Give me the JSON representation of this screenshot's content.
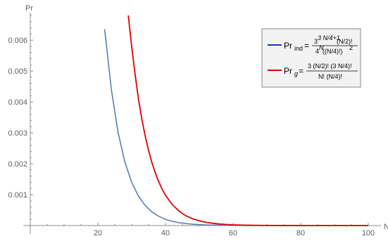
{
  "chart_data": {
    "type": "line",
    "ylabel": "Pr",
    "xlabel": "N",
    "xlim": [
      0,
      100
    ],
    "ylim": [
      0,
      0.0068
    ],
    "x_ticks": [
      20,
      40,
      60,
      80,
      100
    ],
    "y_ticks": [
      0.001,
      0.002,
      0.003,
      0.004,
      0.005,
      0.006
    ],
    "x_tick_labels": [
      "20",
      "40",
      "60",
      "80",
      "100"
    ],
    "y_tick_labels": [
      "0.001",
      "0.002",
      "0.003",
      "0.004",
      "0.005",
      "0.006"
    ],
    "grid": false,
    "legend_position": "top-right",
    "series": [
      {
        "name": "Pr_ind = 3^(3N/4+1) (N/2)! / (4^N ((N/4)!)^2)",
        "color": "#5a7fb0",
        "legend_color": "#2230c8",
        "x": [
          22,
          24,
          26,
          28,
          30,
          32,
          34,
          36,
          38,
          40,
          42,
          44,
          46,
          48,
          50,
          52,
          54,
          56,
          58,
          60,
          62,
          64,
          68,
          72,
          76,
          80,
          84,
          88,
          92,
          96,
          100
        ],
        "y": [
          0.00636,
          0.00439,
          0.003,
          0.00205,
          0.0014,
          0.00095,
          0.00065,
          0.00044,
          0.0003,
          0.0002,
          0.000137,
          9.3e-05,
          6.3e-05,
          4.3e-05,
          2.9e-05,
          2e-05,
          1.33e-05,
          9e-06,
          6.1e-06,
          4.2e-06,
          2.8e-06,
          1.9e-06,
          9e-07,
          4e-07,
          2e-07,
          1e-07,
          5e-08,
          2e-08,
          1e-08,
          5e-09,
          2e-09
        ]
      },
      {
        "name": "Pr_g = 3 (N/2)! (3N/4)! / (N! (N/4)!)",
        "color": "#e00000",
        "legend_color": "#e00000",
        "x": [
          29,
          30,
          31,
          32,
          33,
          34,
          35,
          36,
          37,
          38,
          39,
          40,
          42,
          44,
          46,
          48,
          50,
          52,
          54,
          56,
          58,
          60,
          64,
          68,
          72,
          76,
          80,
          84,
          88,
          92,
          96,
          100
        ],
        "y": [
          0.0068,
          0.0058,
          0.0049,
          0.0041,
          0.00345,
          0.0029,
          0.00243,
          0.00203,
          0.0017,
          0.00142,
          0.00118,
          0.00098,
          0.00068,
          0.00047,
          0.00032,
          0.00022,
          0.000153,
          0.000105,
          7.2e-05,
          5e-05,
          3.4e-05,
          2.3e-05,
          1.1e-05,
          5e-06,
          2.4e-06,
          1.1e-06,
          5e-07,
          2.4e-07,
          1.1e-07,
          5e-08,
          2e-08,
          1e-08
        ]
      }
    ]
  },
  "legend": {
    "ind": {
      "pr": "Pr",
      "sub": "ind",
      "eq": "=",
      "num_base": "3",
      "num_exp": "3 N/4+1",
      "num_rest": " (N/2)!",
      "den_base": "4",
      "den_exp": "N",
      "den_rest": " ((N/4)!)",
      "den_exp2": "2"
    },
    "g": {
      "pr": "Pr",
      "sub": "g",
      "eq": "=",
      "num": "3 (N/2)! (3 N/4)!",
      "den": "N! (N/4)!"
    }
  }
}
